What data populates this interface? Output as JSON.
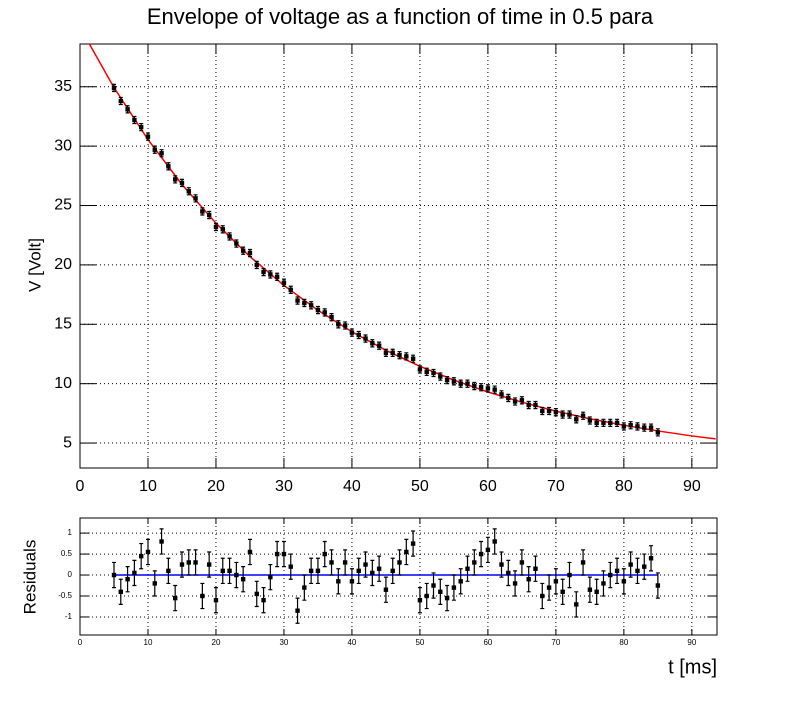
{
  "chart_data": [
    {
      "type": "scatter",
      "title": "Envelope of voltage as a function of time in 0.5 para",
      "y_label": "V [Volt]",
      "xlim": [
        0,
        93.7
      ],
      "ylim": [
        2.9,
        38.6
      ],
      "xticks": [
        0,
        10,
        20,
        30,
        40,
        50,
        60,
        70,
        80,
        90
      ],
      "yticks": [
        5,
        10,
        15,
        20,
        25,
        30,
        35
      ],
      "grid": true,
      "series": [
        {
          "type": "errorbar",
          "color": "#000000",
          "error": 0.3,
          "x": [
            5,
            6,
            7,
            8,
            9,
            10,
            11,
            12,
            13,
            14,
            15,
            16,
            17,
            18,
            19,
            20,
            21,
            22,
            23,
            24,
            25,
            26,
            27,
            28,
            29,
            30,
            31,
            32,
            33,
            34,
            35,
            36,
            37,
            38,
            39,
            40,
            41,
            42,
            43,
            44,
            45,
            46,
            47,
            48,
            49,
            50,
            51,
            52,
            53,
            54,
            55,
            56,
            57,
            58,
            59,
            60,
            61,
            62,
            63,
            64,
            65,
            66,
            67,
            68,
            69,
            70,
            71,
            72,
            73,
            74,
            75,
            76,
            77,
            78,
            79,
            80,
            81,
            82,
            83,
            84,
            85
          ],
          "values": [
            34.9,
            33.8,
            33.1,
            32.2,
            31.6,
            30.8,
            29.7,
            29.4,
            28.3,
            27.2,
            26.9,
            26.2,
            25.6,
            24.5,
            24.2,
            23.2,
            23.0,
            22.4,
            21.8,
            21.2,
            21.0,
            20.0,
            19.4,
            19.2,
            19.0,
            18.5,
            17.9,
            17.0,
            16.8,
            16.6,
            16.2,
            16.0,
            15.6,
            15.0,
            14.9,
            14.3,
            14.1,
            13.8,
            13.4,
            13.2,
            12.6,
            12.6,
            12.4,
            12.3,
            12.1,
            11.2,
            11.0,
            10.9,
            10.6,
            10.3,
            10.2,
            10.0,
            10.0,
            9.8,
            9.7,
            9.6,
            9.5,
            9.1,
            8.8,
            8.5,
            8.6,
            8.2,
            8.2,
            7.7,
            7.7,
            7.6,
            7.4,
            7.4,
            7.0,
            7.3,
            6.9,
            6.7,
            6.7,
            6.7,
            6.7,
            6.4,
            6.5,
            6.4,
            6.3,
            6.3,
            5.9
          ]
        },
        {
          "type": "line",
          "color": "#ff0000",
          "x": [
            0,
            5,
            10,
            15,
            20,
            25,
            30,
            35,
            40,
            45,
            50,
            55,
            60,
            65,
            70,
            75,
            80,
            85,
            90,
            93.5
          ],
          "values": [
            40.0,
            34.93,
            30.55,
            26.77,
            23.51,
            20.7,
            18.27,
            16.18,
            14.37,
            12.81,
            11.46,
            10.3,
            9.3,
            8.44,
            7.69,
            7.05,
            6.5,
            6.02,
            5.6,
            5.35
          ]
        }
      ]
    },
    {
      "type": "scatter",
      "y_label": "Residuals",
      "x_label": "t [ms]",
      "xlim": [
        0,
        93.7
      ],
      "ylim": [
        -1.43,
        1.36
      ],
      "xticks": [
        0,
        10,
        20,
        30,
        40,
        50,
        60,
        70,
        80,
        90
      ],
      "yticks": [
        -1,
        -0.5,
        0,
        0.5,
        1
      ],
      "grid": true,
      "series": [
        {
          "type": "errorbar",
          "color": "#000000",
          "error": 0.3,
          "x": [
            5,
            6,
            7,
            8,
            9,
            10,
            11,
            12,
            13,
            14,
            15,
            16,
            17,
            18,
            19,
            20,
            21,
            22,
            23,
            24,
            25,
            26,
            27,
            28,
            29,
            30,
            31,
            32,
            33,
            34,
            35,
            36,
            37,
            38,
            39,
            40,
            41,
            42,
            43,
            44,
            45,
            46,
            47,
            48,
            49,
            50,
            51,
            52,
            53,
            54,
            55,
            56,
            57,
            58,
            59,
            60,
            61,
            62,
            63,
            64,
            65,
            66,
            67,
            68,
            69,
            70,
            71,
            72,
            73,
            74,
            75,
            76,
            77,
            78,
            79,
            80,
            81,
            82,
            83,
            84,
            85
          ],
          "values": [
            0.0,
            -0.4,
            -0.1,
            0.05,
            0.45,
            0.55,
            -0.2,
            0.8,
            0.1,
            -0.55,
            0.25,
            0.3,
            0.3,
            -0.5,
            0.25,
            -0.6,
            0.1,
            0.1,
            0.0,
            -0.1,
            0.55,
            -0.45,
            -0.6,
            -0.05,
            0.5,
            0.5,
            0.2,
            -0.85,
            -0.3,
            0.1,
            0.1,
            0.5,
            0.3,
            -0.15,
            0.3,
            -0.15,
            0.1,
            0.25,
            0.05,
            0.15,
            -0.35,
            0.1,
            0.3,
            0.55,
            0.75,
            -0.6,
            -0.5,
            -0.25,
            -0.4,
            -0.55,
            -0.3,
            -0.15,
            0.15,
            0.3,
            0.5,
            0.6,
            0.8,
            0.25,
            0.05,
            -0.2,
            0.3,
            -0.1,
            0.15,
            -0.5,
            -0.3,
            -0.15,
            -0.4,
            0.0,
            -0.7,
            0.3,
            -0.35,
            -0.4,
            -0.2,
            0.0,
            0.1,
            -0.15,
            0.25,
            0.1,
            0.2,
            0.4,
            -0.25
          ]
        },
        {
          "type": "line",
          "color": "#0000ff",
          "x": [
            5,
            85
          ],
          "values": [
            0,
            0
          ]
        }
      ]
    }
  ]
}
